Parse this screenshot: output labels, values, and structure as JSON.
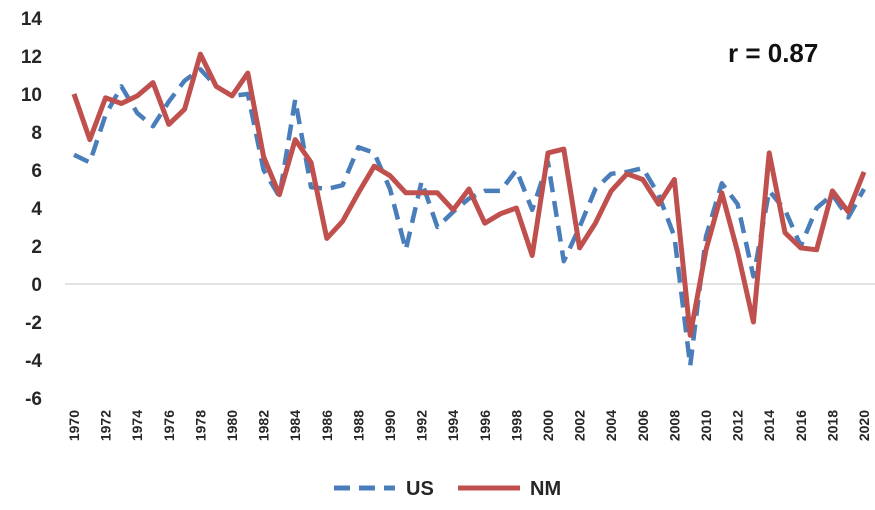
{
  "chart_data": {
    "type": "line",
    "title": "",
    "xlabel": "",
    "ylabel": "",
    "ylim": [
      -6,
      14
    ],
    "yticks": [
      -6,
      -4,
      -2,
      0,
      2,
      4,
      6,
      8,
      10,
      12,
      14
    ],
    "xticks": [
      "1970",
      "1972",
      "1974",
      "1976",
      "1978",
      "1980",
      "1982",
      "1984",
      "1986",
      "1988",
      "1990",
      "1992",
      "1994",
      "1996",
      "1998",
      "2000",
      "2002",
      "2004",
      "2006",
      "2008",
      "2010",
      "2012",
      "2014",
      "2016",
      "2018",
      "2020"
    ],
    "grid": "zero line only",
    "legend_position": "bottom",
    "annotation": "r = 0.87",
    "x": [
      1970,
      1971,
      1972,
      1973,
      1974,
      1975,
      1976,
      1977,
      1978,
      1979,
      1980,
      1981,
      1982,
      1983,
      1984,
      1985,
      1986,
      1987,
      1988,
      1989,
      1990,
      1991,
      1992,
      1993,
      1994,
      1995,
      1996,
      1997,
      1998,
      1999,
      2000,
      2001,
      2002,
      2003,
      2004,
      2005,
      2006,
      2007,
      2008,
      2009,
      2010,
      2011,
      2012,
      2013,
      2014,
      2015,
      2016,
      2017,
      2018,
      2019,
      2020
    ],
    "series": [
      {
        "name": "US",
        "color": "#4A7EBB",
        "style": "dashed",
        "values": [
          6.8,
          6.4,
          8.9,
          10.4,
          9.0,
          8.3,
          9.6,
          10.7,
          11.3,
          10.4,
          9.9,
          10.0,
          6.0,
          4.6,
          9.7,
          5.1,
          5.0,
          5.2,
          7.2,
          6.9,
          5.0,
          1.8,
          5.4,
          3.0,
          3.8,
          4.5,
          4.9,
          4.9,
          6.0,
          3.9,
          6.4,
          1.2,
          3.0,
          5.0,
          5.8,
          5.9,
          6.1,
          4.7,
          2.5,
          -4.3,
          2.5,
          5.3,
          4.2,
          0.4,
          4.9,
          3.9,
          2.0,
          4.0,
          4.7,
          3.5,
          5.0
        ]
      },
      {
        "name": "NM",
        "color": "#C0504D",
        "style": "solid",
        "values": [
          10.0,
          7.6,
          9.8,
          9.5,
          9.9,
          10.6,
          8.4,
          9.2,
          12.1,
          10.4,
          9.9,
          11.1,
          6.7,
          4.7,
          7.6,
          6.4,
          2.4,
          3.3,
          4.8,
          6.2,
          5.7,
          4.8,
          4.8,
          4.8,
          3.9,
          5.0,
          3.2,
          3.7,
          4.0,
          1.5,
          6.9,
          7.1,
          1.9,
          3.2,
          4.9,
          5.8,
          5.5,
          4.2,
          5.5,
          -2.7,
          1.8,
          4.8,
          1.7,
          -2.0,
          6.9,
          2.7,
          1.9,
          1.8,
          4.9,
          3.8,
          5.9
        ]
      }
    ]
  }
}
